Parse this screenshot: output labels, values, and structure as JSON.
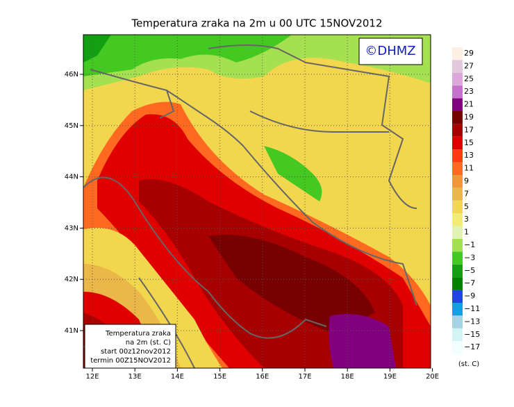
{
  "title": "Temperatura zraka na 2m u 00 UTC 15NOV2012",
  "logo": "©DHMZ",
  "latitude_labels": [
    "46N",
    "45N",
    "44N",
    "43N",
    "42N",
    "41N"
  ],
  "longitude_labels": [
    "12E",
    "13E",
    "14E",
    "15E",
    "16E",
    "17E",
    "18E",
    "19E",
    "20E"
  ],
  "info_box": [
    "Temperatura zraka",
    "na 2m (st. C)",
    "start 00z12nov2012",
    "termin 00Z15NOV2012"
  ],
  "colorbar": {
    "unit": "(st. C)",
    "items": [
      {
        "label": "29",
        "color": "#fdf0e2"
      },
      {
        "label": "27",
        "color": "#e2c8dc"
      },
      {
        "label": "25",
        "color": "#dca8dc"
      },
      {
        "label": "23",
        "color": "#c472cc"
      },
      {
        "label": "21",
        "color": "#82007e"
      },
      {
        "label": "19",
        "color": "#780000"
      },
      {
        "label": "17",
        "color": "#a80000"
      },
      {
        "label": "15",
        "color": "#e00000"
      },
      {
        "label": "13",
        "color": "#ff3a10"
      },
      {
        "label": "11",
        "color": "#ff6a20"
      },
      {
        "label": "9",
        "color": "#f09838"
      },
      {
        "label": "7",
        "color": "#eab848"
      },
      {
        "label": "5",
        "color": "#f2d64e"
      },
      {
        "label": "3",
        "color": "#f2ec74"
      },
      {
        "label": "1",
        "color": "#e2f2b4"
      },
      {
        "label": "−1",
        "color": "#a4e050"
      },
      {
        "label": "−3",
        "color": "#44c822"
      },
      {
        "label": "−5",
        "color": "#12a012"
      },
      {
        "label": "−7",
        "color": "#008200"
      },
      {
        "label": "−9",
        "color": "#2244e4"
      },
      {
        "label": "−11",
        "color": "#12a0e4"
      },
      {
        "label": "−13",
        "color": "#a4d4e4"
      },
      {
        "label": "−15",
        "color": "#d4f4f4"
      },
      {
        "label": "−17",
        "color": "#f2ffff"
      }
    ]
  }
}
